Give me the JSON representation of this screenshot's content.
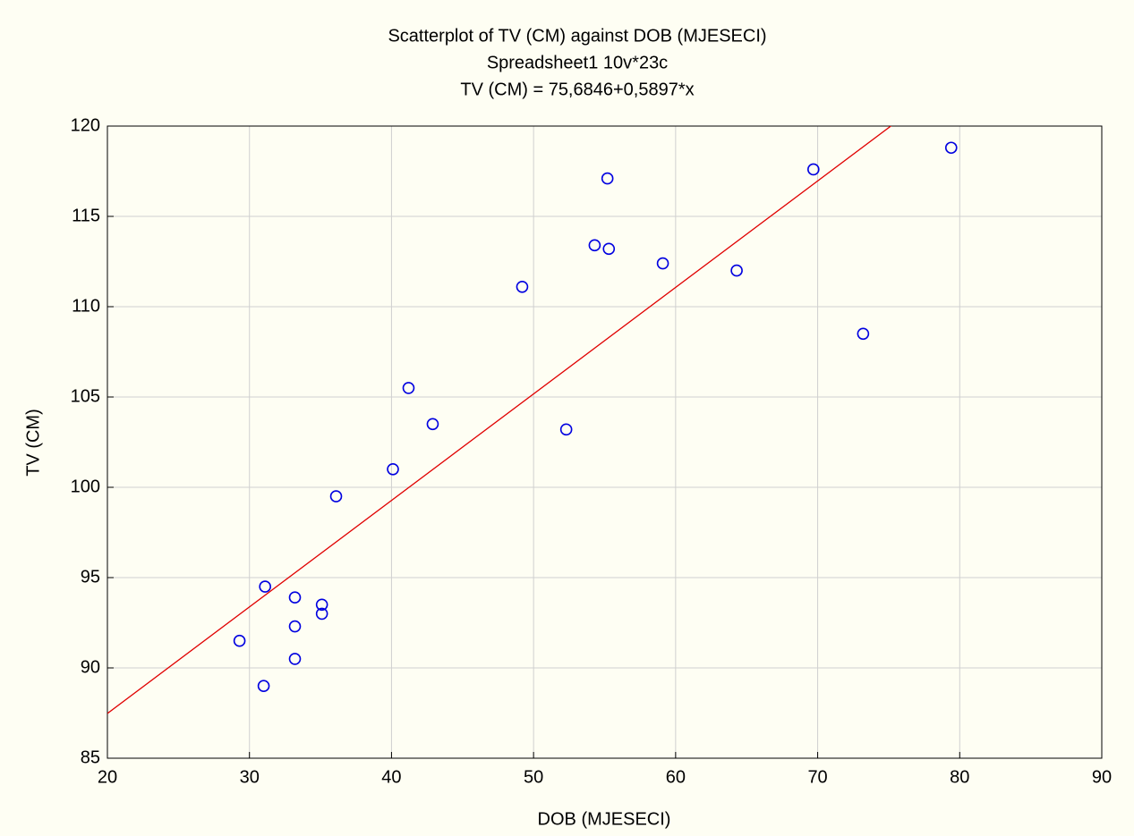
{
  "chart_data": {
    "type": "scatter",
    "title": "Scatterplot of TV (CM) against DOB (MJESECI)",
    "subtitle": "Spreadsheet1 10v*23c",
    "annotation": "TV (CM) = 75,6846+0,5897*x",
    "fit_line": {
      "intercept": 75.6846,
      "slope": 0.5897,
      "color": "#e00000"
    },
    "x_label": "DOB (MJESECI)",
    "y_label": "TV (CM)",
    "xlim": [
      20,
      90
    ],
    "ylim": [
      85,
      120
    ],
    "xticks": [
      20,
      30,
      40,
      50,
      60,
      70,
      80,
      90
    ],
    "yticks": [
      85,
      90,
      95,
      100,
      105,
      110,
      115,
      120
    ],
    "grid": true,
    "series": [
      {
        "name": "TV (CM)",
        "color": "#0000e0",
        "x": [
          29.3,
          31.0,
          31.1,
          33.2,
          33.2,
          33.2,
          35.1,
          35.1,
          36.1,
          40.1,
          41.2,
          42.9,
          49.2,
          52.3,
          54.3,
          55.2,
          55.3,
          59.1,
          64.3,
          69.7,
          73.2,
          79.4
        ],
        "values": [
          91.5,
          89.0,
          94.5,
          93.9,
          92.3,
          90.5,
          93.5,
          93.0,
          99.5,
          101.0,
          105.5,
          103.5,
          111.1,
          103.2,
          113.4,
          117.1,
          113.2,
          112.4,
          112.0,
          117.6,
          108.5,
          118.8
        ]
      }
    ]
  }
}
